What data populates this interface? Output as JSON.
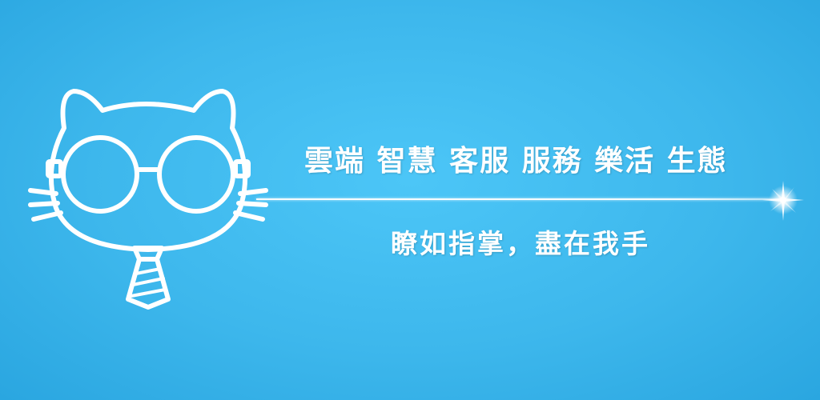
{
  "banner": {
    "headline": "雲端 智慧 客服 服務 樂活 生態",
    "subline": "瞭如指掌，盡在我手"
  },
  "graphics": {
    "mascot_icon": "cat-with-glasses-and-tie-icon",
    "sparkle_icon": "sparkle-star-icon",
    "line_color": "#ffffff",
    "background_color": "#40bbef"
  }
}
